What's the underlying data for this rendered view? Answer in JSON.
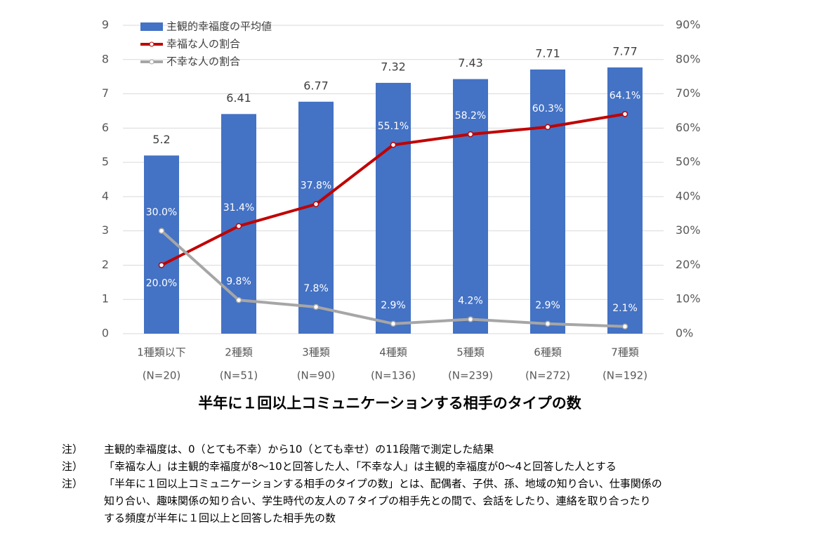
{
  "chart_data": {
    "type": "bar_line",
    "categories": [
      "1種類以下",
      "2種類",
      "3種類",
      "4種類",
      "5種類",
      "6種類",
      "7種類"
    ],
    "category_notes": [
      "(N=20)",
      "(N=51)",
      "(N=90)",
      "(N=136)",
      "(N=239)",
      "(N=272)",
      "(N=192)"
    ],
    "x_label": "半年に１回以上コミュニケーションする相手のタイプの数",
    "ylim": [
      0,
      9
    ],
    "yticks": [
      0,
      1,
      2,
      3,
      4,
      5,
      6,
      7,
      8,
      9
    ],
    "y2lim": [
      0,
      90
    ],
    "y2ticks": [
      {
        "value": 0,
        "label": "0%"
      },
      {
        "value": 10,
        "label": "10%"
      },
      {
        "value": 20,
        "label": "20%"
      },
      {
        "value": 30,
        "label": "30%"
      },
      {
        "value": 40,
        "label": "40%"
      },
      {
        "value": 50,
        "label": "50%"
      },
      {
        "value": 60,
        "label": "60%"
      },
      {
        "value": 70,
        "label": "70%"
      },
      {
        "value": 80,
        "label": "80%"
      },
      {
        "value": 90,
        "label": "90%"
      }
    ],
    "grid": true,
    "series": [
      {
        "name": "主観的幸福度の平均値",
        "type": "bar",
        "color": "#4472c4",
        "values": [
          5.2,
          6.41,
          6.77,
          7.32,
          7.43,
          7.71,
          7.77
        ]
      },
      {
        "name": "幸福な人の割合",
        "type": "line",
        "axis": "y2",
        "color": "#c00000",
        "values": [
          20.0,
          31.4,
          37.8,
          55.1,
          58.2,
          60.3,
          64.1
        ],
        "value_labels": [
          "20.0%",
          "31.4%",
          "37.8%",
          "55.1%",
          "58.2%",
          "60.3%",
          "64.1%"
        ]
      },
      {
        "name": "不幸な人の割合",
        "type": "line",
        "axis": "y2",
        "color": "#a6a6a6",
        "values": [
          30.0,
          9.8,
          7.8,
          2.9,
          4.2,
          2.9,
          2.1
        ],
        "value_labels": [
          "30.0%",
          "9.8%",
          "7.8%",
          "2.9%",
          "4.2%",
          "2.9%",
          "2.1%"
        ]
      }
    ]
  },
  "notes": [
    {
      "label": "注）",
      "lines": [
        "主観的幸福度は、0（とても不幸）から10（とても幸せ）の11段階で測定した結果"
      ]
    },
    {
      "label": "注）",
      "lines": [
        "「幸福な人」は主観的幸福度が8～10と回答した人、「不幸な人」は主観的幸福度が0～4と回答した人とする"
      ]
    },
    {
      "label": "注）",
      "lines": [
        "「半年に１回以上コミュニケーションする相手のタイプの数」とは、配偶者、子供、孫、地域の知り合い、仕事関係の",
        "知り合い、趣味関係の知り合い、学生時代の友人の７タイプの相手先との間で、会話をしたり、連絡を取り合ったり",
        "する頻度が半年に１回以上と回答した相手先の数"
      ]
    }
  ]
}
